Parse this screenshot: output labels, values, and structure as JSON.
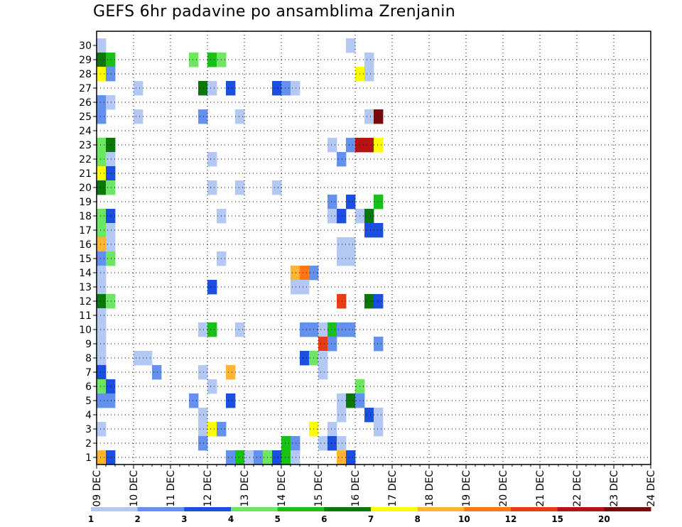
{
  "chart_data": {
    "type": "heatmap",
    "title": "GEFS 6hr padavine po ansamblima Zrenjanin",
    "xlabel": "",
    "ylabel": "",
    "x_tick_labels": [
      "09 DEC",
      "10 DEC",
      "11 DEC",
      "12 DEC",
      "13 DEC",
      "14 DEC",
      "15 DEC",
      "16 DEC",
      "17 DEC",
      "18 DEC",
      "19 DEC",
      "20 DEC",
      "21 DEC",
      "22 DEC",
      "23 DEC",
      "24 DEC"
    ],
    "x_range_days": [
      0,
      15
    ],
    "steps_per_day": 4,
    "y_tick_labels": [
      1,
      2,
      3,
      4,
      5,
      6,
      7,
      8,
      9,
      10,
      11,
      12,
      13,
      14,
      15,
      16,
      17,
      18,
      19,
      20,
      21,
      22,
      23,
      24,
      25,
      26,
      27,
      28,
      29,
      30
    ],
    "ylim": [
      0,
      30
    ],
    "grid": true,
    "color_levels": [
      1,
      2,
      3,
      4,
      5,
      6,
      7,
      8,
      10,
      12,
      15,
      20
    ],
    "color_scale": [
      "#b4c8f4",
      "#6490ee",
      "#1c4ee0",
      "#6ee664",
      "#18c018",
      "#0c780c",
      "#ffff00",
      "#ffb432",
      "#ff7814",
      "#e83c14",
      "#b41414",
      "#780a0a"
    ],
    "cells_note": "each cell = [member (1-30), 6h step index from 09 DEC 00z, color class 1-12]",
    "cells": [
      [
        30,
        0,
        1
      ],
      [
        30,
        27,
        1
      ],
      [
        29,
        0,
        6
      ],
      [
        29,
        1,
        5
      ],
      [
        29,
        10,
        4
      ],
      [
        29,
        12,
        5
      ],
      [
        29,
        13,
        4
      ],
      [
        29,
        29,
        1
      ],
      [
        28,
        0,
        7
      ],
      [
        28,
        1,
        2
      ],
      [
        28,
        28,
        7
      ],
      [
        28,
        29,
        1
      ],
      [
        27,
        4,
        1
      ],
      [
        27,
        11,
        6
      ],
      [
        27,
        12,
        1
      ],
      [
        27,
        14,
        3
      ],
      [
        27,
        19,
        3
      ],
      [
        27,
        20,
        2
      ],
      [
        27,
        21,
        1
      ],
      [
        26,
        0,
        2
      ],
      [
        26,
        1,
        1
      ],
      [
        25,
        0,
        2
      ],
      [
        25,
        4,
        1
      ],
      [
        25,
        11,
        2
      ],
      [
        25,
        15,
        1
      ],
      [
        25,
        29,
        1
      ],
      [
        25,
        30,
        12
      ],
      [
        23,
        0,
        4
      ],
      [
        23,
        1,
        6
      ],
      [
        23,
        25,
        1
      ],
      [
        23,
        27,
        2
      ],
      [
        23,
        28,
        11
      ],
      [
        23,
        29,
        11
      ],
      [
        23,
        30,
        7
      ],
      [
        22,
        0,
        4
      ],
      [
        22,
        1,
        1
      ],
      [
        22,
        12,
        1
      ],
      [
        22,
        26,
        2
      ],
      [
        21,
        0,
        7
      ],
      [
        21,
        1,
        3
      ],
      [
        20,
        0,
        6
      ],
      [
        20,
        1,
        4
      ],
      [
        20,
        12,
        1
      ],
      [
        20,
        15,
        1
      ],
      [
        20,
        19,
        1
      ],
      [
        19,
        25,
        2
      ],
      [
        19,
        27,
        3
      ],
      [
        19,
        30,
        5
      ],
      [
        18,
        0,
        4
      ],
      [
        18,
        1,
        3
      ],
      [
        18,
        13,
        1
      ],
      [
        18,
        25,
        1
      ],
      [
        18,
        26,
        3
      ],
      [
        18,
        28,
        1
      ],
      [
        18,
        29,
        6
      ],
      [
        17,
        0,
        4
      ],
      [
        17,
        1,
        1
      ],
      [
        17,
        29,
        3
      ],
      [
        17,
        30,
        3
      ],
      [
        16,
        0,
        8
      ],
      [
        16,
        1,
        1
      ],
      [
        16,
        26,
        1
      ],
      [
        16,
        27,
        1
      ],
      [
        15,
        0,
        2
      ],
      [
        15,
        1,
        4
      ],
      [
        15,
        13,
        1
      ],
      [
        15,
        26,
        1
      ],
      [
        15,
        27,
        1
      ],
      [
        14,
        0,
        1
      ],
      [
        14,
        21,
        8
      ],
      [
        14,
        22,
        9
      ],
      [
        14,
        23,
        2
      ],
      [
        13,
        0,
        1
      ],
      [
        13,
        12,
        3
      ],
      [
        13,
        21,
        1
      ],
      [
        13,
        22,
        1
      ],
      [
        12,
        0,
        6
      ],
      [
        12,
        1,
        4
      ],
      [
        12,
        26,
        10
      ],
      [
        12,
        29,
        6
      ],
      [
        12,
        30,
        3
      ],
      [
        11,
        0,
        1
      ],
      [
        10,
        0,
        1
      ],
      [
        10,
        11,
        1
      ],
      [
        10,
        12,
        5
      ],
      [
        10,
        15,
        1
      ],
      [
        10,
        22,
        2
      ],
      [
        10,
        23,
        2
      ],
      [
        10,
        24,
        1
      ],
      [
        10,
        25,
        5
      ],
      [
        10,
        26,
        2
      ],
      [
        10,
        27,
        2
      ],
      [
        9,
        0,
        1
      ],
      [
        9,
        24,
        10
      ],
      [
        9,
        25,
        2
      ],
      [
        9,
        30,
        2
      ],
      [
        8,
        0,
        1
      ],
      [
        8,
        4,
        1
      ],
      [
        8,
        5,
        1
      ],
      [
        8,
        22,
        3
      ],
      [
        8,
        23,
        4
      ],
      [
        8,
        24,
        1
      ],
      [
        7,
        0,
        3
      ],
      [
        7,
        6,
        2
      ],
      [
        7,
        11,
        1
      ],
      [
        7,
        14,
        8
      ],
      [
        7,
        24,
        1
      ],
      [
        6,
        0,
        4
      ],
      [
        6,
        1,
        3
      ],
      [
        6,
        12,
        1
      ],
      [
        6,
        28,
        4
      ],
      [
        5,
        0,
        2
      ],
      [
        5,
        1,
        2
      ],
      [
        5,
        10,
        2
      ],
      [
        5,
        14,
        3
      ],
      [
        5,
        26,
        1
      ],
      [
        5,
        27,
        6
      ],
      [
        5,
        28,
        2
      ],
      [
        4,
        11,
        1
      ],
      [
        4,
        26,
        1
      ],
      [
        4,
        29,
        3
      ],
      [
        4,
        30,
        1
      ],
      [
        3,
        0,
        1
      ],
      [
        3,
        11,
        1
      ],
      [
        3,
        12,
        7
      ],
      [
        3,
        13,
        2
      ],
      [
        3,
        23,
        7
      ],
      [
        3,
        25,
        1
      ],
      [
        3,
        30,
        1
      ],
      [
        2,
        11,
        2
      ],
      [
        2,
        20,
        5
      ],
      [
        2,
        21,
        2
      ],
      [
        2,
        24,
        1
      ],
      [
        2,
        25,
        3
      ],
      [
        2,
        26,
        1
      ],
      [
        1,
        0,
        8
      ],
      [
        1,
        1,
        3
      ],
      [
        1,
        14,
        2
      ],
      [
        1,
        15,
        5
      ],
      [
        1,
        16,
        1
      ],
      [
        1,
        17,
        2
      ],
      [
        1,
        18,
        4
      ],
      [
        1,
        19,
        3
      ],
      [
        1,
        20,
        5
      ],
      [
        1,
        21,
        1
      ],
      [
        1,
        26,
        8
      ],
      [
        1,
        27,
        3
      ]
    ]
  }
}
